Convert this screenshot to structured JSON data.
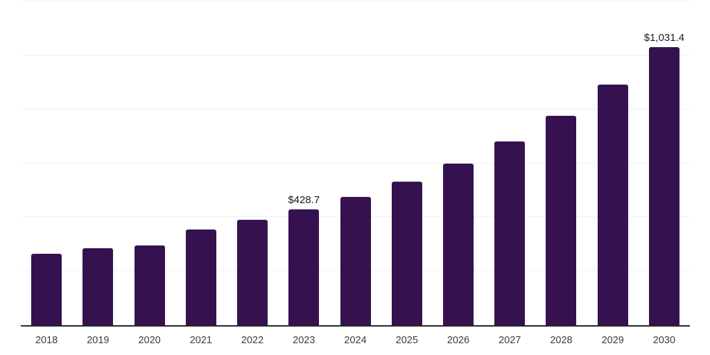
{
  "chart_data": {
    "type": "bar",
    "title": "",
    "xlabel": "",
    "ylabel": "",
    "categories": [
      "2018",
      "2019",
      "2020",
      "2021",
      "2022",
      "2023",
      "2024",
      "2025",
      "2026",
      "2027",
      "2028",
      "2029",
      "2030"
    ],
    "values": [
      264.0,
      284.5,
      295.0,
      354.0,
      390.0,
      428.7,
      475.0,
      531.0,
      597.5,
      682.0,
      777.0,
      892.5,
      1031.4
    ],
    "point_labels": {
      "2023": "$428.7",
      "2030": "$1,031.4"
    },
    "ylim": [
      0,
      1200
    ],
    "gridline_step": 200,
    "grid": true,
    "y_tick_labels_shown": false,
    "legend_position": "none",
    "bar_color": "#35124F",
    "axis_line_color": "#262626",
    "gridline_color": "#f0f0f0",
    "tick_label_color": "#3d3d3d",
    "data_label_color": "#1a1a1a",
    "background_color": "#ffffff"
  }
}
